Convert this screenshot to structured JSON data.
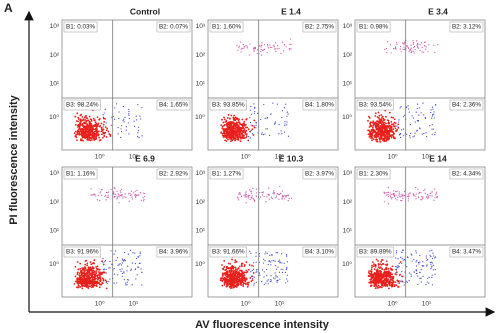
{
  "figure_label": "A",
  "x_label": "AV fluorescence intensity",
  "y_label": "PI fluorescence intensity",
  "y_ticks": [
    "10³",
    "10²",
    "10¹",
    "10⁰"
  ],
  "x_ticks": [
    "10⁰",
    "10¹"
  ],
  "panels": [
    {
      "title": "Control",
      "quadrants": [
        "B1: 0.03%",
        "B2: 0.07%",
        "B3: 98.24%",
        "B4: 1.65%"
      ]
    },
    {
      "title": "E 1.4",
      "quadrants": [
        "B1: 1.60%",
        "B2: 2.75%",
        "B3: 93.85%",
        "B4: 1.80%"
      ]
    },
    {
      "title": "E 3.4",
      "quadrants": [
        "B1: 0.98%",
        "B2: 3.12%",
        "B3: 93.54%",
        "B4: 2.36%"
      ]
    },
    {
      "title": "E 6.9",
      "quadrants": [
        "B1: 1.16%",
        "B2: 2.92%",
        "B3: 91.96%",
        "B4: 3.96%"
      ]
    },
    {
      "title": "E 10.3",
      "quadrants": [
        "B1: 1.27%",
        "B2: 3.97%",
        "B3: 91.66%",
        "B4: 3.10%"
      ]
    },
    {
      "title": "E 14",
      "quadrants": [
        "B1: 2.30%",
        "B2: 4.34%",
        "B3: 89.89%",
        "B4: 3.47%"
      ]
    }
  ]
}
